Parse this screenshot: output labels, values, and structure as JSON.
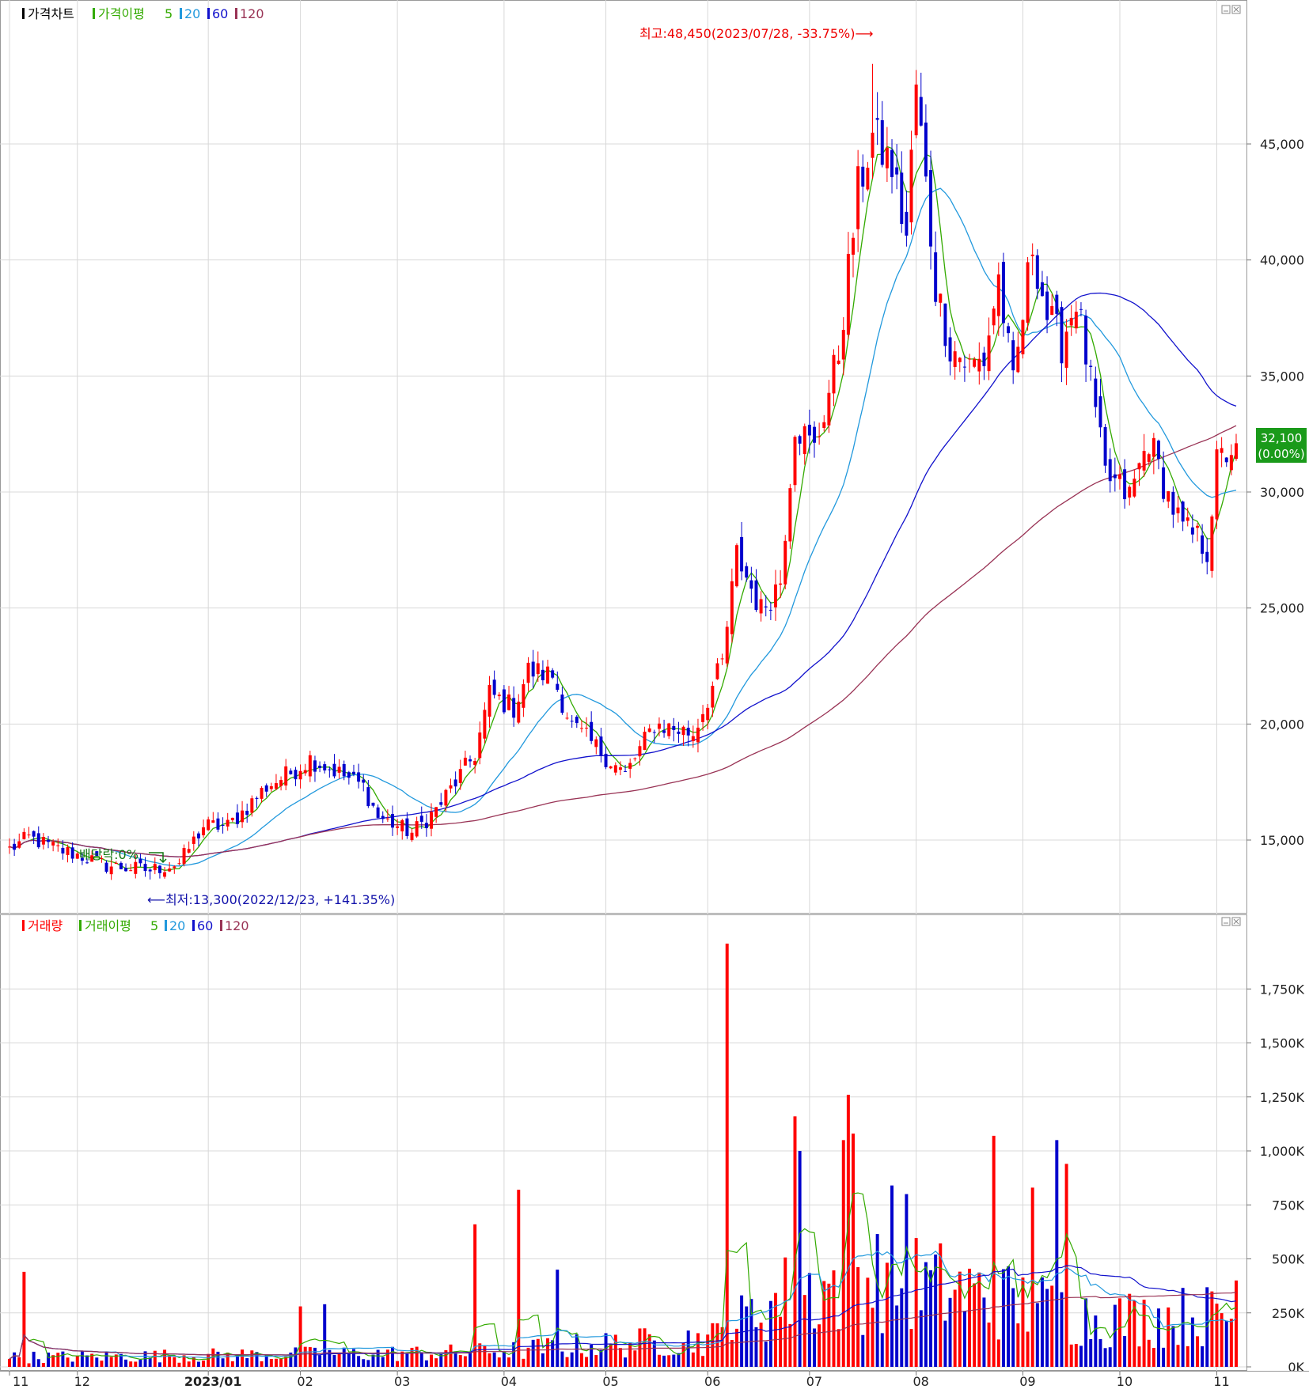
{
  "colors": {
    "up": "#ff0000",
    "down": "#0000cc",
    "ma5": "#33aa00",
    "ma20": "#2299dd",
    "ma60": "#1111cc",
    "ma120": "#993355",
    "grid": "#d8d8d8",
    "badge_bg": "#1a9a1a"
  },
  "price_panel": {
    "legend": [
      {
        "label": "가격차트",
        "color": "#000000",
        "icon": "black-square-icon"
      },
      {
        "label": "가격이평",
        "color": "#33aa00",
        "icon": "green-square-icon"
      },
      {
        "label": "5",
        "color": "#33aa00"
      },
      {
        "label": "20",
        "color": "#2299dd",
        "icon": "cyan-square-icon"
      },
      {
        "label": "60",
        "color": "#1111cc",
        "icon": "blue-square-icon"
      },
      {
        "label": "120",
        "color": "#993355",
        "icon": "maroon-square-icon"
      }
    ],
    "high_annotation": "최고:48,450(2023/07/28, -33.75%)⟶",
    "low_annotation": "⟵최저:13,300(2022/12/23, +141.35%)",
    "dividend_annotation": "배당락:0%",
    "current_price": "32,100",
    "current_change": "(0.00%)"
  },
  "volume_panel": {
    "legend": [
      {
        "label": "거래량",
        "color": "#ff0000",
        "icon": "red-square-icon"
      },
      {
        "label": "거래이평",
        "color": "#33aa00",
        "icon": "green-square-icon"
      },
      {
        "label": "5",
        "color": "#33aa00"
      },
      {
        "label": "20",
        "color": "#2299dd",
        "icon": "cyan-square-icon"
      },
      {
        "label": "60",
        "color": "#1111cc",
        "icon": "blue-square-icon"
      },
      {
        "label": "120",
        "color": "#993355",
        "icon": "maroon-square-icon"
      }
    ]
  },
  "chart_data": [
    {
      "type": "candlestick",
      "panel": "price",
      "ylim": [
        12000,
        49500
      ],
      "y_ticks": [
        15000,
        20000,
        25000,
        30000,
        35000,
        40000,
        45000
      ],
      "y_tick_labels": [
        "15,000",
        "20,000",
        "25,000",
        "30,000",
        "35,000",
        "40,000",
        "45,000"
      ],
      "grid": true,
      "x_ticks": [
        "11",
        "12",
        "2023/01",
        "02",
        "03",
        "04",
        "05",
        "06",
        "07",
        "08",
        "09",
        "10",
        "11"
      ],
      "x_tick_day_index": [
        0,
        14,
        41,
        60,
        80,
        102,
        123,
        144,
        165,
        187,
        209,
        229,
        249
      ],
      "days": 254,
      "anchors": [
        [
          0,
          14600
        ],
        [
          4,
          15100
        ],
        [
          10,
          14600
        ],
        [
          15,
          14300
        ],
        [
          20,
          13900
        ],
        [
          29,
          13700
        ],
        [
          35,
          14000
        ],
        [
          40,
          15600
        ],
        [
          45,
          15600
        ],
        [
          48,
          16200
        ],
        [
          53,
          17300
        ],
        [
          58,
          17900
        ],
        [
          62,
          18500
        ],
        [
          67,
          18000
        ],
        [
          73,
          17300
        ],
        [
          76,
          16000
        ],
        [
          83,
          15300
        ],
        [
          88,
          16300
        ],
        [
          96,
          18700
        ],
        [
          99,
          21300
        ],
        [
          104,
          20700
        ],
        [
          107,
          22300
        ],
        [
          112,
          22100
        ],
        [
          116,
          19900
        ],
        [
          121,
          19000
        ],
        [
          127,
          17800
        ],
        [
          133,
          20000
        ],
        [
          141,
          19600
        ],
        [
          147,
          22600
        ],
        [
          150,
          27300
        ],
        [
          155,
          24900
        ],
        [
          159,
          26200
        ],
        [
          162,
          33000
        ],
        [
          166,
          31800
        ],
        [
          171,
          36000
        ],
        [
          175,
          43000
        ],
        [
          178,
          45300
        ],
        [
          182,
          44000
        ],
        [
          185,
          41000
        ],
        [
          187,
          47500
        ],
        [
          191,
          38900
        ],
        [
          194,
          36300
        ],
        [
          198,
          35400
        ],
        [
          201,
          35700
        ],
        [
          204,
          39200
        ],
        [
          207,
          34500
        ],
        [
          211,
          40700
        ],
        [
          214,
          37600
        ],
        [
          217,
          36400
        ],
        [
          220,
          38400
        ],
        [
          223,
          34600
        ],
        [
          226,
          30700
        ],
        [
          231,
          29800
        ],
        [
          235,
          32300
        ],
        [
          239,
          29800
        ],
        [
          242,
          28400
        ],
        [
          245,
          28000
        ],
        [
          247,
          27500
        ],
        [
          249,
          31200
        ],
        [
          253,
          32100
        ]
      ],
      "ma_values_at_end": {
        "ma5": 31300,
        "ma20": 30000,
        "ma60": 33500,
        "ma120": 31700
      },
      "last_close": 32100,
      "high": {
        "value": 48450,
        "date": "2023/07/28"
      },
      "low": {
        "value": 13300,
        "date": "2022/12/23"
      }
    },
    {
      "type": "bar",
      "panel": "volume",
      "ylim": [
        0,
        2000000
      ],
      "y_ticks": [
        0,
        250000,
        500000,
        750000,
        1000000,
        1250000,
        1500000,
        1750000
      ],
      "y_tick_labels": [
        "0K",
        "250K",
        "500K",
        "750K",
        "1,000K",
        "1,250K",
        "1,500K",
        "1,750K"
      ],
      "grid": true,
      "spikes": [
        [
          3,
          440000
        ],
        [
          60,
          280000
        ],
        [
          65,
          290000
        ],
        [
          96,
          660000
        ],
        [
          105,
          820000
        ],
        [
          113,
          450000
        ],
        [
          148,
          1960000
        ],
        [
          162,
          1160000
        ],
        [
          163,
          1000000
        ],
        [
          172,
          1050000
        ],
        [
          173,
          1260000
        ],
        [
          174,
          1080000
        ],
        [
          182,
          840000
        ],
        [
          185,
          800000
        ],
        [
          203,
          1070000
        ],
        [
          211,
          830000
        ],
        [
          216,
          1050000
        ],
        [
          218,
          940000
        ]
      ],
      "base_by_segment": [
        [
          0,
          40000
        ],
        [
          95,
          60000
        ],
        [
          145,
          120000
        ],
        [
          160,
          300000
        ],
        [
          180,
          380000
        ],
        [
          225,
          200000
        ],
        [
          253,
          220000
        ]
      ],
      "last_volume": 400000
    }
  ]
}
